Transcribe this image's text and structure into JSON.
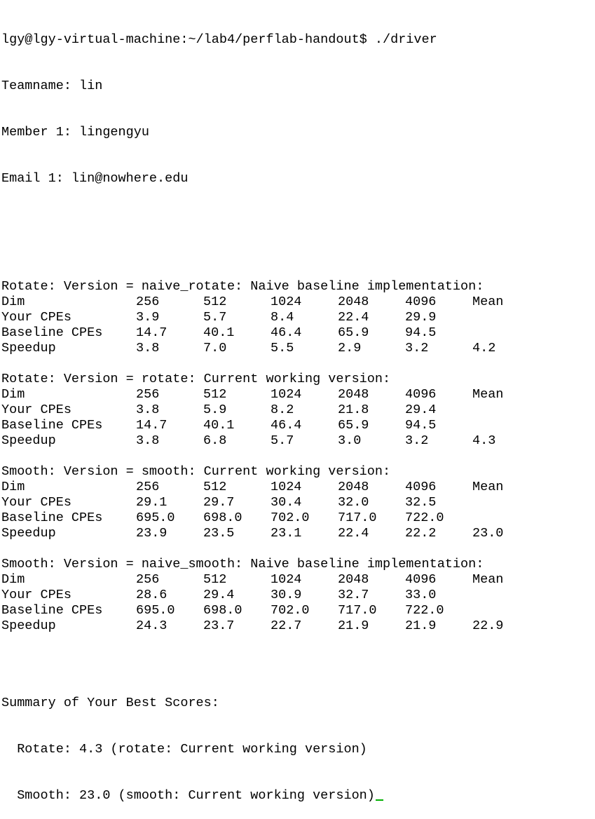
{
  "prompt": {
    "text": "lgy@lgy-virtual-machine:~/lab4/perflab-handout$ ./driver"
  },
  "team": {
    "teamname": "Teamname: lin",
    "member": "Member 1: lingengyu",
    "email": "Email 1: lin@nowhere.edu"
  },
  "row_labels": {
    "dim": "Dim",
    "your": "Your CPEs",
    "baseline": "Baseline CPEs",
    "speedup": "Speedup"
  },
  "sections": [
    {
      "header": "Rotate: Version = naive_rotate: Naive baseline implementation:",
      "dims": [
        "256",
        "512",
        "1024",
        "2048",
        "4096",
        "Mean"
      ],
      "your": [
        "3.9",
        "5.7",
        "8.4",
        "22.4",
        "29.9",
        ""
      ],
      "baseline": [
        "14.7",
        "40.1",
        "46.4",
        "65.9",
        "94.5",
        ""
      ],
      "speedup": [
        "3.8",
        "7.0",
        "5.5",
        "2.9",
        "3.2",
        "4.2"
      ]
    },
    {
      "header": "Rotate: Version = rotate: Current working version:",
      "dims": [
        "256",
        "512",
        "1024",
        "2048",
        "4096",
        "Mean"
      ],
      "your": [
        "3.8",
        "5.9",
        "8.2",
        "21.8",
        "29.4",
        ""
      ],
      "baseline": [
        "14.7",
        "40.1",
        "46.4",
        "65.9",
        "94.5",
        ""
      ],
      "speedup": [
        "3.8",
        "6.8",
        "5.7",
        "3.0",
        "3.2",
        "4.3"
      ]
    },
    {
      "header": "Smooth: Version = smooth: Current working version:",
      "dims": [
        "256",
        "512",
        "1024",
        "2048",
        "4096",
        "Mean"
      ],
      "your": [
        "29.1",
        "29.7",
        "30.4",
        "32.0",
        "32.5",
        ""
      ],
      "baseline": [
        "695.0",
        "698.0",
        "702.0",
        "717.0",
        "722.0",
        ""
      ],
      "speedup": [
        "23.9",
        "23.5",
        "23.1",
        "22.4",
        "22.2",
        "23.0"
      ]
    },
    {
      "header": "Smooth: Version = naive_smooth: Naive baseline implementation:",
      "dims": [
        "256",
        "512",
        "1024",
        "2048",
        "4096",
        "Mean"
      ],
      "your": [
        "28.6",
        "29.4",
        "30.9",
        "32.7",
        "33.0",
        ""
      ],
      "baseline": [
        "695.0",
        "698.0",
        "702.0",
        "717.0",
        "722.0",
        ""
      ],
      "speedup": [
        "24.3",
        "23.7",
        "22.7",
        "21.9",
        "21.9",
        "22.9"
      ]
    }
  ],
  "summary": {
    "title": "Summary of Your Best Scores:",
    "rotate": "  Rotate: 4.3 (rotate: Current working version)",
    "smooth": "  Smooth: 23.0 (smooth: Current working version)"
  },
  "colors": {
    "background": "#ffffff",
    "text": "#000000",
    "cursor": "#00b000"
  }
}
